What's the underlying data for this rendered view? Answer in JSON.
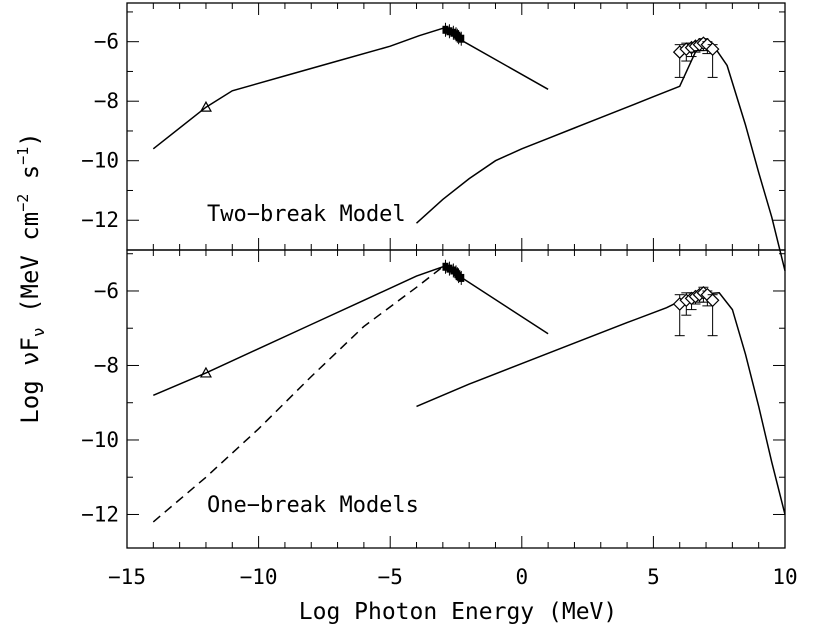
{
  "chart_data": [
    {
      "type": "line",
      "panel": "top",
      "title": "",
      "annotation": "Two−break Model",
      "xlim": [
        -15,
        10
      ],
      "ylim": [
        -13,
        -4.7
      ],
      "yticks": [
        -6,
        -8,
        -10,
        -12
      ],
      "ytick_labels": [
        "−6",
        "−8",
        "−10",
        "−12"
      ],
      "series": [
        {
          "name": "synchrotron",
          "style": "solid",
          "x": [
            -14,
            -12,
            -11,
            -9,
            -7,
            -5,
            -3.9,
            -3,
            -2.7,
            1.0
          ],
          "y": [
            -9.6,
            -8.2,
            -7.65,
            -7.15,
            -6.65,
            -6.15,
            -5.8,
            -5.55,
            -5.75,
            -7.6
          ]
        },
        {
          "name": "inverse-compton",
          "style": "solid",
          "x": [
            -4,
            -3,
            -2,
            -1,
            0,
            1,
            2,
            3,
            4,
            5,
            6,
            6.7,
            7.3,
            7.8,
            8.5,
            9.0,
            9.5,
            10.0
          ],
          "y": [
            -12.1,
            -11.3,
            -10.6,
            -10.0,
            -9.6,
            -9.25,
            -8.9,
            -8.55,
            -8.2,
            -7.85,
            -7.5,
            -6.15,
            -6.15,
            -6.8,
            -8.8,
            -10.4,
            -11.9,
            -13.7
          ]
        }
      ],
      "markers": [
        {
          "shape": "triangle",
          "x": [
            -12
          ],
          "y": [
            -8.2
          ]
        },
        {
          "shape": "filled-cluster",
          "x": [
            -2.9,
            -2.75,
            -2.6,
            -2.5,
            -2.45,
            -2.4,
            -2.3
          ],
          "y": [
            -5.6,
            -5.65,
            -5.7,
            -5.75,
            -5.8,
            -5.85,
            -5.9
          ]
        },
        {
          "shape": "diamond",
          "x": [
            6.0,
            6.25,
            6.45,
            6.6,
            6.75,
            6.9,
            7.05,
            7.25
          ],
          "y": [
            -6.35,
            -6.25,
            -6.2,
            -6.15,
            -6.1,
            -6.05,
            -6.1,
            -6.25
          ],
          "yerr_low": [
            0.85,
            0.4,
            0.3,
            0.2,
            0.2,
            0.25,
            0.3,
            0.95
          ],
          "yerr_high": [
            0.25,
            0.2,
            0.15,
            0.1,
            0.1,
            0.15,
            0.1,
            0.15
          ]
        }
      ]
    },
    {
      "type": "line",
      "panel": "bottom",
      "title": "",
      "annotation": "One−break Models",
      "xlim": [
        -15,
        10
      ],
      "ylim": [
        -12.9,
        -4.9
      ],
      "yticks": [
        -6,
        -8,
        -10,
        -12
      ],
      "ytick_labels": [
        "−6",
        "−8",
        "−10",
        "−12"
      ],
      "series": [
        {
          "name": "synchrotron",
          "style": "solid",
          "x": [
            -14,
            -12,
            -10,
            -8,
            -6,
            -4,
            -3.0,
            -2.7,
            1.0
          ],
          "y": [
            -8.8,
            -8.2,
            -7.55,
            -6.9,
            -6.25,
            -5.6,
            -5.35,
            -5.45,
            -7.15
          ]
        },
        {
          "name": "synchrotron-steep",
          "style": "dashed",
          "x": [
            -14,
            -12,
            -10,
            -8,
            -6,
            -4,
            -3.0
          ],
          "y": [
            -12.2,
            -11.0,
            -9.7,
            -8.3,
            -6.95,
            -5.9,
            -5.35
          ]
        },
        {
          "name": "inverse-compton",
          "style": "solid",
          "x": [
            -4,
            -2,
            0,
            2,
            4,
            5.5,
            6.5,
            7.5,
            8,
            8.5,
            9.0,
            9.5,
            10.0
          ],
          "y": [
            -9.1,
            -8.5,
            -7.95,
            -7.4,
            -6.85,
            -6.45,
            -6.1,
            -6.05,
            -6.5,
            -7.7,
            -9.1,
            -10.6,
            -12.0
          ]
        }
      ],
      "markers": [
        {
          "shape": "triangle",
          "x": [
            -12
          ],
          "y": [
            -8.2
          ]
        },
        {
          "shape": "filled-cluster",
          "x": [
            -2.9,
            -2.75,
            -2.6,
            -2.5,
            -2.45,
            -2.4,
            -2.3
          ],
          "y": [
            -5.35,
            -5.4,
            -5.45,
            -5.5,
            -5.55,
            -5.6,
            -5.65
          ]
        },
        {
          "shape": "diamond",
          "x": [
            6.0,
            6.25,
            6.45,
            6.6,
            6.75,
            6.9,
            7.05,
            7.25
          ],
          "y": [
            -6.35,
            -6.25,
            -6.2,
            -6.15,
            -6.1,
            -6.05,
            -6.1,
            -6.25
          ],
          "yerr_low": [
            0.85,
            0.4,
            0.3,
            0.2,
            0.2,
            0.25,
            0.3,
            0.95
          ],
          "yerr_high": [
            0.25,
            0.2,
            0.15,
            0.1,
            0.1,
            0.15,
            0.1,
            0.15
          ]
        }
      ]
    }
  ],
  "axes": {
    "xlabel": "Log Photon Energy (MeV)",
    "ylabel_main": "Log νF",
    "ylabel_sub": "ν",
    "ylabel_units": " (MeV cm",
    "ylabel_exp1": "−2",
    "ylabel_mid": " s",
    "ylabel_exp2": "−1",
    "ylabel_close": ")",
    "xticks": [
      -15,
      -10,
      -5,
      0,
      5,
      10
    ],
    "xtick_labels": [
      "−15",
      "−10",
      "−5",
      "0",
      "5",
      "10"
    ]
  },
  "colors": {
    "ink": "#000000",
    "background": "#ffffff"
  }
}
